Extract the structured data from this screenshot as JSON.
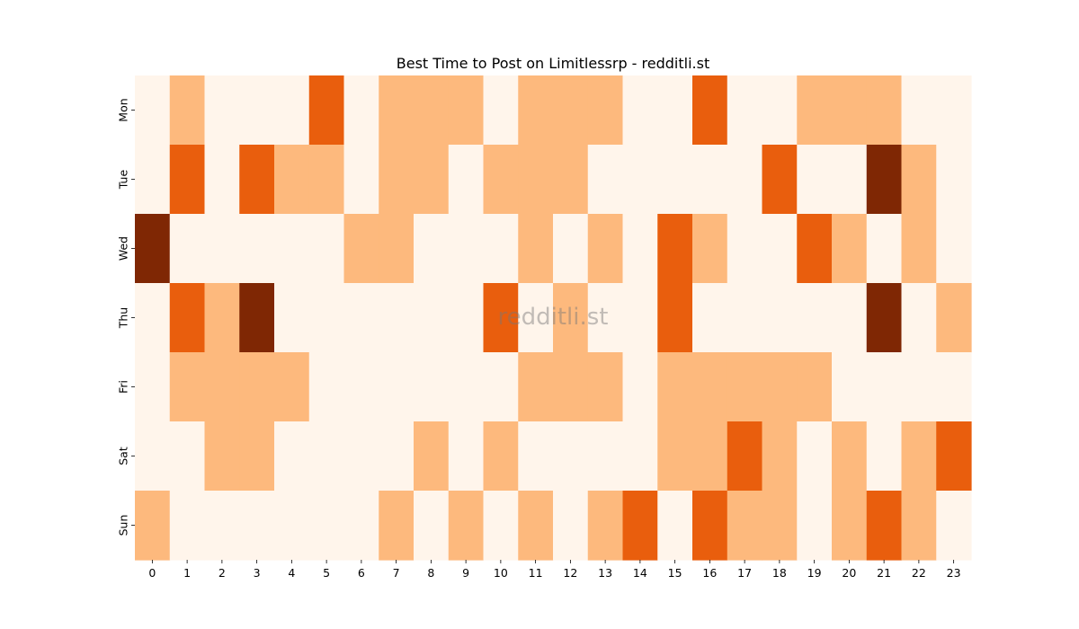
{
  "chart_data": {
    "type": "heatmap",
    "title": "Best Time to Post on Limitlessrp - redditli.st",
    "watermark": "redditli.st",
    "xlabel": "",
    "ylabel": "",
    "x_categories": [
      "0",
      "1",
      "2",
      "3",
      "4",
      "5",
      "6",
      "7",
      "8",
      "9",
      "10",
      "11",
      "12",
      "13",
      "14",
      "15",
      "16",
      "17",
      "18",
      "19",
      "20",
      "21",
      "22",
      "23"
    ],
    "y_categories": [
      "Mon",
      "Tue",
      "Wed",
      "Thu",
      "Fri",
      "Sat",
      "Sun"
    ],
    "colormap": [
      "#fff5eb",
      "#fdb97d",
      "#e95e0d",
      "#7f2704"
    ],
    "values": [
      [
        0,
        1,
        0,
        0,
        0,
        2,
        0,
        1,
        1,
        1,
        0,
        1,
        1,
        1,
        0,
        0,
        2,
        0,
        0,
        1,
        1,
        1,
        0,
        0
      ],
      [
        0,
        2,
        0,
        2,
        1,
        1,
        0,
        1,
        1,
        0,
        1,
        1,
        1,
        0,
        0,
        0,
        0,
        0,
        2,
        0,
        0,
        3,
        1,
        0
      ],
      [
        3,
        0,
        0,
        0,
        0,
        0,
        1,
        1,
        0,
        0,
        0,
        1,
        0,
        1,
        0,
        2,
        1,
        0,
        0,
        2,
        1,
        0,
        1,
        0
      ],
      [
        0,
        2,
        1,
        3,
        0,
        0,
        0,
        0,
        0,
        0,
        2,
        0,
        1,
        0,
        0,
        2,
        0,
        0,
        0,
        0,
        0,
        3,
        0,
        1
      ],
      [
        0,
        1,
        1,
        1,
        1,
        0,
        0,
        0,
        0,
        0,
        0,
        1,
        1,
        1,
        0,
        1,
        1,
        1,
        1,
        1,
        0,
        0,
        0,
        0
      ],
      [
        0,
        0,
        1,
        1,
        0,
        0,
        0,
        0,
        1,
        0,
        1,
        0,
        0,
        0,
        0,
        1,
        1,
        2,
        1,
        0,
        1,
        0,
        1,
        2
      ],
      [
        1,
        0,
        0,
        0,
        0,
        0,
        0,
        1,
        0,
        1,
        0,
        1,
        0,
        1,
        2,
        0,
        2,
        1,
        1,
        0,
        1,
        2,
        1,
        0
      ]
    ]
  }
}
